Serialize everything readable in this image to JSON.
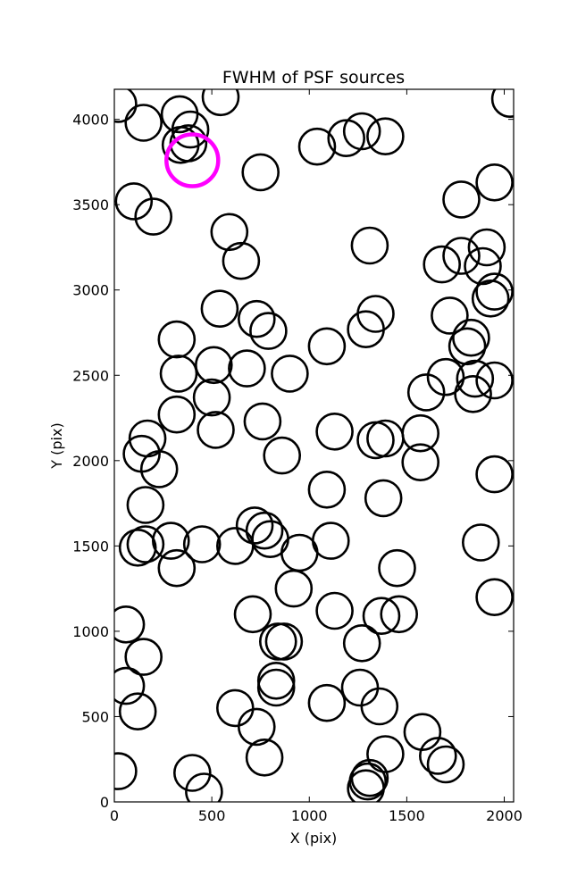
{
  "chart_data": {
    "type": "scatter",
    "title": "FWHM of PSF sources",
    "xlabel": "X (pix)",
    "ylabel": "Y (pix)",
    "xlim": [
      0,
      2048
    ],
    "ylim": [
      0,
      4176
    ],
    "xticks": [
      0,
      500,
      1000,
      1500,
      2000
    ],
    "yticks": [
      0,
      500,
      1000,
      1500,
      2000,
      2500,
      3000,
      3500,
      4000
    ],
    "grid": false,
    "marker": "open circle",
    "colors": {
      "sources": "#000000",
      "highlight": "#ff00ff"
    },
    "series": [
      {
        "points": [
          [
            20,
            4090
          ],
          [
            150,
            3980
          ],
          [
            335,
            4030
          ],
          [
            390,
            3940
          ],
          [
            340,
            3850
          ],
          [
            380,
            3860
          ],
          [
            545,
            4130
          ],
          [
            2030,
            4120
          ],
          [
            1040,
            3840
          ],
          [
            1190,
            3890
          ],
          [
            1270,
            3930
          ],
          [
            1390,
            3900
          ],
          [
            750,
            3690
          ],
          [
            1950,
            3630
          ],
          [
            1780,
            3530
          ],
          [
            100,
            3520
          ],
          [
            200,
            3430
          ],
          [
            590,
            3340
          ],
          [
            1310,
            3260
          ],
          [
            1910,
            3250
          ],
          [
            650,
            3170
          ],
          [
            1680,
            3150
          ],
          [
            1780,
            3200
          ],
          [
            1890,
            3140
          ],
          [
            1950,
            2990
          ],
          [
            1930,
            2950
          ],
          [
            540,
            2890
          ],
          [
            1340,
            2860
          ],
          [
            1720,
            2850
          ],
          [
            730,
            2830
          ],
          [
            1290,
            2770
          ],
          [
            790,
            2760
          ],
          [
            320,
            2710
          ],
          [
            1090,
            2670
          ],
          [
            1830,
            2720
          ],
          [
            1810,
            2670
          ],
          [
            510,
            2560
          ],
          [
            680,
            2540
          ],
          [
            900,
            2510
          ],
          [
            330,
            2510
          ],
          [
            1700,
            2490
          ],
          [
            1850,
            2480
          ],
          [
            1950,
            2470
          ],
          [
            1600,
            2400
          ],
          [
            1840,
            2390
          ],
          [
            500,
            2370
          ],
          [
            320,
            2270
          ],
          [
            760,
            2230
          ],
          [
            1130,
            2170
          ],
          [
            1570,
            2160
          ],
          [
            1340,
            2120
          ],
          [
            1390,
            2130
          ],
          [
            170,
            2130
          ],
          [
            520,
            2180
          ],
          [
            140,
            2040
          ],
          [
            860,
            2030
          ],
          [
            1570,
            1990
          ],
          [
            230,
            1950
          ],
          [
            1950,
            1920
          ],
          [
            1090,
            1830
          ],
          [
            160,
            1740
          ],
          [
            1380,
            1780
          ],
          [
            720,
            1620
          ],
          [
            770,
            1590
          ],
          [
            120,
            1490
          ],
          [
            160,
            1510
          ],
          [
            290,
            1530
          ],
          [
            450,
            1510
          ],
          [
            620,
            1500
          ],
          [
            800,
            1540
          ],
          [
            950,
            1460
          ],
          [
            1110,
            1530
          ],
          [
            1880,
            1520
          ],
          [
            320,
            1370
          ],
          [
            1450,
            1370
          ],
          [
            920,
            1250
          ],
          [
            1950,
            1200
          ],
          [
            710,
            1100
          ],
          [
            1130,
            1120
          ],
          [
            1370,
            1090
          ],
          [
            1460,
            1100
          ],
          [
            60,
            1040
          ],
          [
            840,
            940
          ],
          [
            870,
            940
          ],
          [
            1270,
            930
          ],
          [
            150,
            850
          ],
          [
            830,
            710
          ],
          [
            60,
            680
          ],
          [
            1260,
            670
          ],
          [
            830,
            670
          ],
          [
            1090,
            580
          ],
          [
            620,
            550
          ],
          [
            1360,
            560
          ],
          [
            120,
            530
          ],
          [
            730,
            440
          ],
          [
            1580,
            410
          ],
          [
            1390,
            280
          ],
          [
            770,
            260
          ],
          [
            1660,
            270
          ],
          [
            1700,
            220
          ],
          [
            1310,
            140
          ],
          [
            1300,
            120
          ],
          [
            20,
            180
          ],
          [
            400,
            170
          ],
          [
            460,
            60
          ],
          [
            1290,
            80
          ]
        ]
      },
      {
        "points": [
          [
            400,
            3760
          ]
        ]
      }
    ]
  }
}
